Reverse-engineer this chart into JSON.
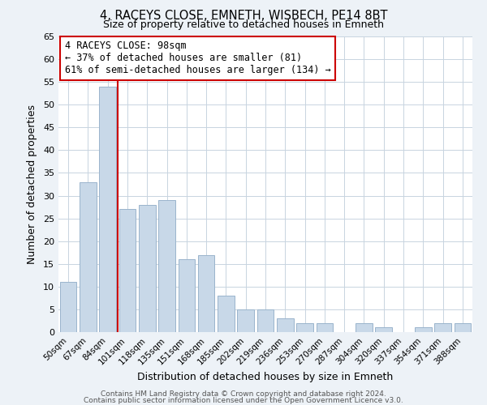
{
  "title": "4, RACEYS CLOSE, EMNETH, WISBECH, PE14 8BT",
  "subtitle": "Size of property relative to detached houses in Emneth",
  "xlabel": "Distribution of detached houses by size in Emneth",
  "ylabel": "Number of detached properties",
  "bar_labels": [
    "50sqm",
    "67sqm",
    "84sqm",
    "101sqm",
    "118sqm",
    "135sqm",
    "151sqm",
    "168sqm",
    "185sqm",
    "202sqm",
    "219sqm",
    "236sqm",
    "253sqm",
    "270sqm",
    "287sqm",
    "304sqm",
    "320sqm",
    "337sqm",
    "354sqm",
    "371sqm",
    "388sqm"
  ],
  "bar_values": [
    11,
    33,
    54,
    27,
    28,
    29,
    16,
    17,
    8,
    5,
    5,
    3,
    2,
    2,
    0,
    2,
    1,
    0,
    1,
    2,
    2
  ],
  "bar_color": "#c8d8e8",
  "bar_edge_color": "#9ab4cc",
  "vline_index": 3,
  "vline_color": "#cc0000",
  "ylim": [
    0,
    65
  ],
  "yticks": [
    0,
    5,
    10,
    15,
    20,
    25,
    30,
    35,
    40,
    45,
    50,
    55,
    60,
    65
  ],
  "annotation_line1": "4 RACEYS CLOSE: 98sqm",
  "annotation_line2": "← 37% of detached houses are smaller (81)",
  "annotation_line3": "61% of semi-detached houses are larger (134) →",
  "annotation_box_color": "#ffffff",
  "annotation_box_edge": "#cc0000",
  "footer_line1": "Contains HM Land Registry data © Crown copyright and database right 2024.",
  "footer_line2": "Contains public sector information licensed under the Open Government Licence v3.0.",
  "background_color": "#edf2f7",
  "plot_bg_color": "#ffffff",
  "grid_color": "#c8d4e0"
}
